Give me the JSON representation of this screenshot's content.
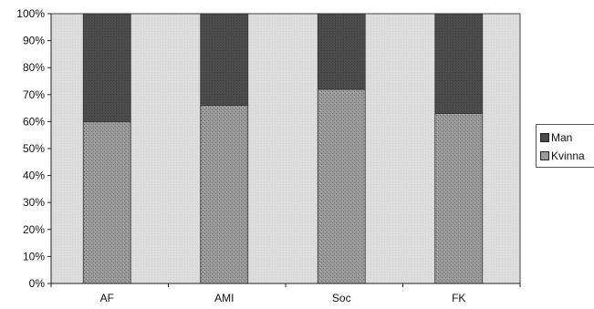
{
  "chart_data": {
    "type": "bar",
    "stacked": true,
    "percent": true,
    "categories": [
      "AF",
      "AMI",
      "Soc",
      "FK"
    ],
    "series": [
      {
        "name": "Kvinna",
        "values": [
          60,
          66,
          72,
          63
        ],
        "color": "#8a8a8a"
      },
      {
        "name": "Man",
        "values": [
          40,
          34,
          28,
          37
        ],
        "color": "#4f4f4f"
      }
    ],
    "ylim": [
      0,
      100
    ],
    "yticks": [
      "0%",
      "10%",
      "20%",
      "30%",
      "40%",
      "50%",
      "60%",
      "70%",
      "80%",
      "90%",
      "100%"
    ],
    "plot_background": "#dcdcdc",
    "grid": false,
    "legend": {
      "position": "right",
      "entries": [
        "Man",
        "Kvinna"
      ]
    }
  }
}
